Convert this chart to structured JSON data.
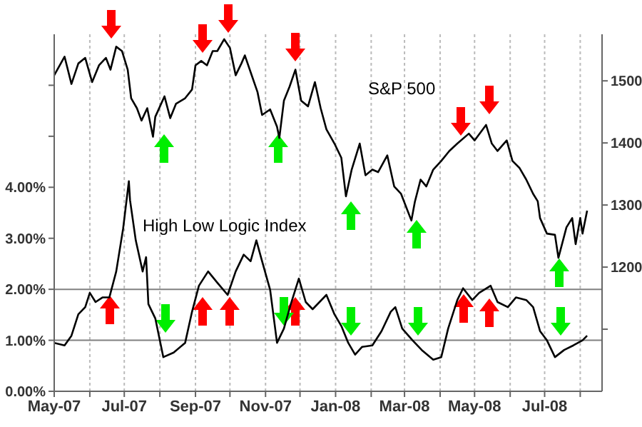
{
  "chart_data": {
    "type": "line",
    "legend": false,
    "grid": "x",
    "marker": "none",
    "line_style": "solid",
    "xlim": [
      "2007-05-01",
      "2008-08-20"
    ],
    "xticks": [
      {
        "value": "2007-05-01",
        "label": "May-07"
      },
      {
        "value": "2007-06-01",
        "label": null
      },
      {
        "value": "2007-07-01",
        "label": "Jul-07"
      },
      {
        "value": "2007-08-01",
        "label": null
      },
      {
        "value": "2007-09-01",
        "label": "Sep-07"
      },
      {
        "value": "2007-10-01",
        "label": null
      },
      {
        "value": "2007-11-01",
        "label": "Nov-07"
      },
      {
        "value": "2007-12-01",
        "label": null
      },
      {
        "value": "2008-01-01",
        "label": "Jan-08"
      },
      {
        "value": "2008-02-01",
        "label": null
      },
      {
        "value": "2008-03-01",
        "label": "Mar-08"
      },
      {
        "value": "2008-04-01",
        "label": null
      },
      {
        "value": "2008-05-01",
        "label": "May-08"
      },
      {
        "value": "2008-06-01",
        "label": null
      },
      {
        "value": "2008-07-01",
        "label": "Jul-08"
      },
      {
        "value": "2008-08-01",
        "label": null
      }
    ],
    "ylim": [
      0,
      7
    ],
    "yticks": [
      {
        "value": 0,
        "label": "0.00%"
      },
      {
        "value": 1,
        "label": "1.00%"
      },
      {
        "value": 2,
        "label": "2.00%"
      },
      {
        "value": 3,
        "label": "3.00%"
      },
      {
        "value": 4,
        "label": "4.00%"
      },
      {
        "value": 5,
        "label": null
      },
      {
        "value": 6,
        "label": null
      }
    ],
    "y2lim": [
      1000,
      1575
    ],
    "y2ticks": [
      {
        "value": 1100,
        "label": null
      },
      1200,
      1300,
      1400,
      1500
    ],
    "ref_lines": [
      {
        "axis": "y",
        "value": 1,
        "color": "#808080"
      },
      {
        "axis": "y",
        "value": 2,
        "color": "#808080"
      }
    ],
    "series": [
      {
        "name": "S&P 500",
        "color": "#000000",
        "axis": "y2",
        "x": [
          "2007-05-01",
          "2007-05-10",
          "2007-05-16",
          "2007-05-22",
          "2007-05-28",
          "2007-06-03",
          "2007-06-09",
          "2007-06-15",
          "2007-06-19",
          "2007-06-24",
          "2007-06-29",
          "2007-07-04",
          "2007-07-07",
          "2007-07-12",
          "2007-07-16",
          "2007-07-21",
          "2007-07-26",
          "2007-07-28",
          "2007-08-05",
          "2007-08-10",
          "2007-08-15",
          "2007-08-23",
          "2007-08-29",
          "2007-09-01",
          "2007-09-06",
          "2007-09-11",
          "2007-09-16",
          "2007-09-20",
          "2007-09-26",
          "2007-10-01",
          "2007-10-06",
          "2007-10-11",
          "2007-10-14",
          "2007-10-19",
          "2007-10-25",
          "2007-10-29",
          "2007-11-05",
          "2007-11-11",
          "2007-11-13",
          "2007-11-17",
          "2007-11-22",
          "2007-11-27",
          "2007-12-02",
          "2007-12-08",
          "2007-12-14",
          "2007-12-19",
          "2007-12-24",
          "2007-12-31",
          "2008-01-06",
          "2008-01-10",
          "2008-01-15",
          "2008-01-22",
          "2008-01-27",
          "2008-02-02",
          "2008-02-07",
          "2008-02-15",
          "2008-02-21",
          "2008-02-27",
          "2008-03-07",
          "2008-03-10",
          "2008-03-15",
          "2008-03-20",
          "2008-03-26",
          "2008-04-02",
          "2008-04-09",
          "2008-04-16",
          "2008-04-26",
          "2008-05-01",
          "2008-05-11",
          "2008-05-16",
          "2008-05-21",
          "2008-05-29",
          "2008-06-03",
          "2008-06-09",
          "2008-06-15",
          "2008-06-21",
          "2008-06-25",
          "2008-06-27",
          "2008-07-03",
          "2008-07-10",
          "2008-07-13",
          "2008-07-20",
          "2008-07-25",
          "2008-07-28",
          "2008-08-01",
          "2008-08-03",
          "2008-08-07"
        ],
        "values": [
          1509,
          1539,
          1495,
          1528,
          1537,
          1498,
          1525,
          1537,
          1518,
          1555,
          1548,
          1518,
          1472,
          1456,
          1436,
          1456,
          1410,
          1442,
          1475,
          1440,
          1463,
          1472,
          1486,
          1525,
          1532,
          1525,
          1548,
          1548,
          1567,
          1553,
          1509,
          1528,
          1541,
          1514,
          1482,
          1445,
          1454,
          1426,
          1408,
          1468,
          1491,
          1518,
          1468,
          1459,
          1498,
          1456,
          1422,
          1399,
          1376,
          1314,
          1357,
          1399,
          1348,
          1357,
          1353,
          1380,
          1330,
          1318,
          1275,
          1305,
          1341,
          1330,
          1357,
          1371,
          1387,
          1399,
          1415,
          1404,
          1429,
          1399,
          1387,
          1404,
          1371,
          1360,
          1341,
          1318,
          1306,
          1279,
          1254,
          1252,
          1215,
          1264,
          1279,
          1237,
          1279,
          1254,
          1291
        ]
      },
      {
        "name": "High Low Logic Index",
        "color": "#000000",
        "x": [
          "2007-05-01",
          "2007-05-10",
          "2007-05-16",
          "2007-05-22",
          "2007-05-28",
          "2007-06-01",
          "2007-06-06",
          "2007-06-12",
          "2007-06-18",
          "2007-06-24",
          "2007-06-30",
          "2007-07-05",
          "2007-07-06",
          "2007-07-11",
          "2007-07-17",
          "2007-07-20",
          "2007-07-22",
          "2007-07-28",
          "2007-08-04",
          "2007-08-13",
          "2007-08-23",
          "2007-08-29",
          "2007-09-04",
          "2007-09-12",
          "2007-09-20",
          "2007-09-29",
          "2007-10-06",
          "2007-10-13",
          "2007-10-19",
          "2007-10-24",
          "2007-10-29",
          "2007-11-05",
          "2007-11-11",
          "2007-11-17",
          "2007-11-23",
          "2007-11-30",
          "2007-12-06",
          "2007-12-12",
          "2007-12-18",
          "2007-12-24",
          "2007-12-31",
          "2008-01-06",
          "2008-01-12",
          "2008-01-18",
          "2008-01-24",
          "2008-02-02",
          "2008-02-10",
          "2008-02-18",
          "2008-02-22",
          "2008-02-28",
          "2008-03-08",
          "2008-03-16",
          "2008-03-26",
          "2008-04-02",
          "2008-04-08",
          "2008-04-16",
          "2008-04-21",
          "2008-04-29",
          "2008-05-05",
          "2008-05-15",
          "2008-05-21",
          "2008-05-30",
          "2008-06-06",
          "2008-06-15",
          "2008-06-21",
          "2008-06-27",
          "2008-07-03",
          "2008-07-10",
          "2008-07-18",
          "2008-07-26",
          "2008-08-03",
          "2008-08-07"
        ],
        "values": [
          0.95,
          0.9,
          1.09,
          1.51,
          1.65,
          1.93,
          1.75,
          1.84,
          1.84,
          2.35,
          3.19,
          4.12,
          3.75,
          2.96,
          2.35,
          2.63,
          1.71,
          1.43,
          0.67,
          0.76,
          0.95,
          1.56,
          2.07,
          2.35,
          2.13,
          1.89,
          2.35,
          2.68,
          2.55,
          2.96,
          2.55,
          1.99,
          0.95,
          1.23,
          1.71,
          2.21,
          1.75,
          1.61,
          1.75,
          1.89,
          1.51,
          1.28,
          0.95,
          0.72,
          0.87,
          0.9,
          1.18,
          1.56,
          1.65,
          1.23,
          1.0,
          0.81,
          0.62,
          0.67,
          1.23,
          1.79,
          2.02,
          1.79,
          1.93,
          2.07,
          1.75,
          1.65,
          1.84,
          1.79,
          1.65,
          1.18,
          1.0,
          0.67,
          0.81,
          0.9,
          1.0,
          1.09
        ]
      }
    ]
  }
}
